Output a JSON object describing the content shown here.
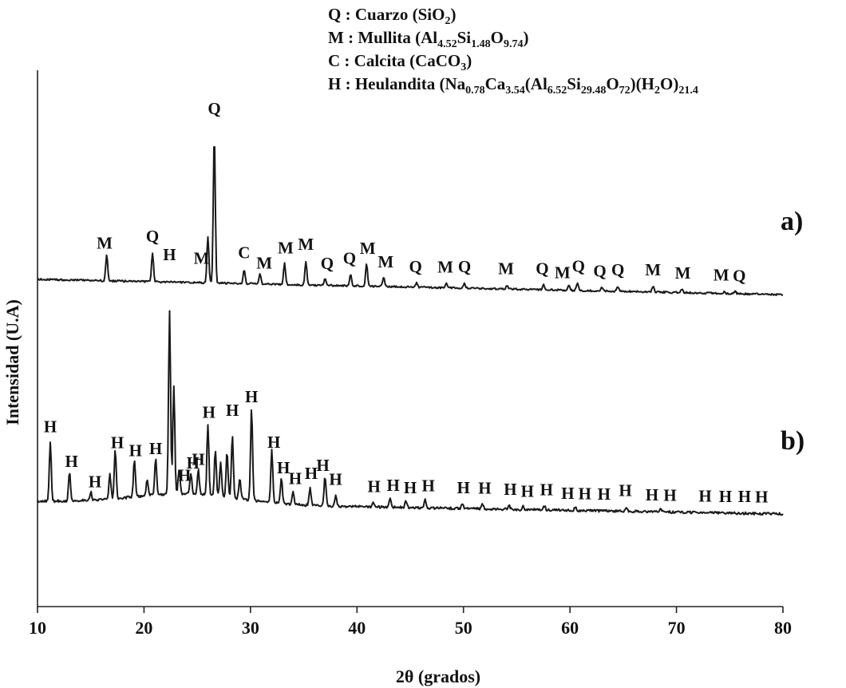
{
  "chart_data": {
    "type": "line",
    "xlabel": "2θ (grados)",
    "ylabel": "Intensidad (U.A)",
    "xlim": [
      10,
      80
    ],
    "xticks": [
      10,
      20,
      30,
      40,
      50,
      60,
      70,
      80
    ],
    "grid": false,
    "legend": {
      "placement": "top-right",
      "entries": [
        {
          "key": "Q",
          "sep": " : ",
          "name": "Cuarzo (",
          "formula": [
            [
              "SiO",
              ""
            ],
            [
              "",
              "2"
            ]
          ],
          "close": ")"
        },
        {
          "key": "M",
          "sep": " : ",
          "name": "Mullita (",
          "formula": [
            [
              "Al",
              "4.52"
            ],
            [
              "Si",
              "1.48"
            ],
            [
              "O",
              "9.74"
            ]
          ],
          "close": ")"
        },
        {
          "key": "C",
          "sep": " : ",
          "name": "Calcita (",
          "formula": [
            [
              "CaCO",
              "3"
            ]
          ],
          "close": ")"
        },
        {
          "key": "H",
          "sep": " : ",
          "name": "Heulandita (",
          "formula": [
            [
              "Na",
              "0.78"
            ],
            [
              "Ca",
              "3.54"
            ],
            [
              "(Al",
              "6.52"
            ],
            [
              "Si",
              "29.48"
            ],
            [
              "O",
              "72"
            ],
            [
              ")(H",
              "2"
            ],
            [
              "O)",
              "21.4"
            ]
          ],
          "close": ""
        }
      ]
    },
    "series": [
      {
        "name": "a)",
        "baseline": [
          [
            10,
            1.0
          ],
          [
            80,
            0.88
          ]
        ],
        "peaks": [
          [
            16.5,
            0.32
          ],
          [
            20.8,
            0.36
          ],
          [
            26.0,
            0.58
          ],
          [
            26.6,
            1.88
          ],
          [
            29.4,
            0.18
          ],
          [
            30.9,
            0.12
          ],
          [
            33.2,
            0.26
          ],
          [
            35.2,
            0.3
          ],
          [
            37.0,
            0.08
          ],
          [
            39.4,
            0.14
          ],
          [
            40.9,
            0.28
          ],
          [
            42.5,
            0.12
          ],
          [
            45.6,
            0.05
          ],
          [
            48.4,
            0.05
          ],
          [
            50.1,
            0.06
          ],
          [
            54.1,
            0.05
          ],
          [
            57.5,
            0.06
          ],
          [
            59.9,
            0.07
          ],
          [
            60.7,
            0.1
          ],
          [
            63.0,
            0.05
          ],
          [
            64.5,
            0.06
          ],
          [
            67.8,
            0.07
          ],
          [
            70.5,
            0.04
          ],
          [
            74.5,
            0.03
          ],
          [
            75.5,
            0.03
          ]
        ],
        "labels": [
          [
            16.3,
            "M"
          ],
          [
            20.8,
            "Q"
          ],
          [
            25.4,
            "M"
          ],
          [
            26.6,
            "Q"
          ],
          [
            29.4,
            "C"
          ],
          [
            31.3,
            "M"
          ],
          [
            33.3,
            "M"
          ],
          [
            35.2,
            "M"
          ],
          [
            37.2,
            "Q"
          ],
          [
            39.3,
            "Q"
          ],
          [
            41.0,
            "M"
          ],
          [
            42.7,
            "M"
          ],
          [
            45.5,
            "Q"
          ],
          [
            48.3,
            "M"
          ],
          [
            50.1,
            "Q"
          ],
          [
            54.0,
            "M"
          ],
          [
            57.4,
            "Q"
          ],
          [
            59.3,
            "M"
          ],
          [
            60.8,
            "Q"
          ],
          [
            62.8,
            "Q"
          ],
          [
            64.5,
            "Q"
          ],
          [
            67.8,
            "M"
          ],
          [
            70.6,
            "M"
          ],
          [
            74.2,
            "M"
          ],
          [
            75.9,
            "Q"
          ]
        ]
      },
      {
        "name": "b)",
        "baseline": [
          [
            10,
            1.0
          ],
          [
            80,
            0.9
          ]
        ],
        "peaks": [
          [
            11.2,
            0.7
          ],
          [
            13.0,
            0.35
          ],
          [
            15.0,
            0.1
          ],
          [
            16.8,
            0.3
          ],
          [
            17.3,
            0.6
          ],
          [
            19.1,
            0.45
          ],
          [
            20.3,
            0.2
          ],
          [
            21.1,
            0.45
          ],
          [
            22.4,
            2.2
          ],
          [
            22.8,
            1.3
          ],
          [
            23.3,
            0.3
          ],
          [
            24.4,
            0.25
          ],
          [
            25.1,
            0.3
          ],
          [
            26.0,
            0.85
          ],
          [
            26.7,
            0.55
          ],
          [
            27.2,
            0.4
          ],
          [
            27.8,
            0.55
          ],
          [
            28.3,
            0.75
          ],
          [
            29.0,
            0.25
          ],
          [
            30.1,
            1.1
          ],
          [
            32.0,
            0.65
          ],
          [
            32.9,
            0.3
          ],
          [
            34.0,
            0.15
          ],
          [
            35.6,
            0.2
          ],
          [
            37.0,
            0.35
          ],
          [
            38.0,
            0.12
          ],
          [
            41.5,
            0.05
          ],
          [
            43.1,
            0.1
          ],
          [
            44.6,
            0.08
          ],
          [
            46.4,
            0.1
          ],
          [
            49.9,
            0.05
          ],
          [
            51.8,
            0.06
          ],
          [
            54.3,
            0.04
          ],
          [
            55.6,
            0.04
          ],
          [
            57.6,
            0.05
          ],
          [
            60.5,
            0.04
          ],
          [
            65.3,
            0.05
          ],
          [
            68.5,
            0.03
          ]
        ],
        "labels": [
          [
            11.2,
            "H"
          ],
          [
            13.2,
            "H"
          ],
          [
            15.4,
            "H"
          ],
          [
            17.5,
            "H"
          ],
          [
            19.2,
            "H"
          ],
          [
            21.1,
            "H"
          ],
          [
            22.4,
            "H"
          ],
          [
            23.8,
            "H"
          ],
          [
            24.6,
            "H"
          ],
          [
            25.1,
            "H"
          ],
          [
            26.1,
            "H"
          ],
          [
            28.3,
            "H"
          ],
          [
            30.1,
            "H"
          ],
          [
            32.2,
            "H"
          ],
          [
            33.1,
            "H"
          ],
          [
            34.2,
            "H"
          ],
          [
            35.7,
            "H"
          ],
          [
            36.8,
            "H"
          ],
          [
            38.0,
            "H"
          ],
          [
            41.6,
            "H"
          ],
          [
            43.4,
            "H"
          ],
          [
            45.0,
            "H"
          ],
          [
            46.7,
            "H"
          ],
          [
            50.0,
            "H"
          ],
          [
            52.0,
            "H"
          ],
          [
            54.4,
            "H"
          ],
          [
            56.0,
            "H"
          ],
          [
            57.8,
            "H"
          ],
          [
            59.8,
            "H"
          ],
          [
            61.4,
            "H"
          ],
          [
            63.2,
            "H"
          ],
          [
            65.2,
            "H"
          ],
          [
            67.7,
            "H"
          ],
          [
            69.4,
            "H"
          ],
          [
            72.7,
            "H"
          ],
          [
            74.6,
            "H"
          ],
          [
            76.4,
            "H"
          ],
          [
            78.0,
            "H"
          ]
        ]
      }
    ]
  }
}
